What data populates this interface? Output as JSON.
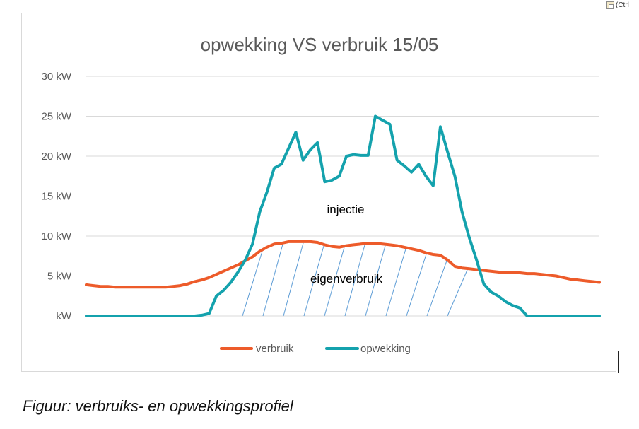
{
  "toolbar": {
    "paste_options_label": "(Ctrl"
  },
  "caption": "Figuur: verbruiks- en opwekkingsprofiel",
  "colors": {
    "verbruik": "#ED5B2A",
    "opwekking": "#14A2AD",
    "hatch": "#5B9BD5",
    "grid": "#D9D9D9",
    "text": "#595959"
  },
  "chart_data": {
    "type": "line",
    "title": "opwekking VS verbruik 15/05",
    "xlabel": "",
    "ylabel": "",
    "ylim": [
      0,
      30
    ],
    "ytick_labels": [
      "kW",
      "5 kW",
      "10 kW",
      "15 kW",
      "20 kW",
      "25 kW",
      "30 kW"
    ],
    "ytick_values": [
      0,
      5,
      10,
      15,
      20,
      25,
      30
    ],
    "grid": true,
    "legend": "bottom",
    "series": [
      {
        "name": "verbruik",
        "values": [
          3.9,
          3.8,
          3.7,
          3.7,
          3.6,
          3.6,
          3.6,
          3.6,
          3.6,
          3.6,
          3.6,
          3.6,
          3.7,
          3.8,
          4.0,
          4.3,
          4.5,
          4.8,
          5.2,
          5.6,
          6.0,
          6.4,
          6.9,
          7.4,
          8.1,
          8.6,
          9.0,
          9.1,
          9.3,
          9.3,
          9.3,
          9.3,
          9.2,
          8.9,
          8.7,
          8.6,
          8.8,
          8.9,
          9.0,
          9.1,
          9.1,
          9.0,
          8.9,
          8.8,
          8.6,
          8.4,
          8.2,
          7.9,
          7.7,
          7.6,
          7.0,
          6.2,
          6.0,
          5.9,
          5.8,
          5.7,
          5.6,
          5.5,
          5.4,
          5.4,
          5.4,
          5.3,
          5.3,
          5.2,
          5.1,
          5.0,
          4.8,
          4.6,
          4.5,
          4.4,
          4.3,
          4.2
        ]
      },
      {
        "name": "opwekking",
        "values": [
          0,
          0,
          0,
          0,
          0,
          0,
          0,
          0,
          0,
          0,
          0,
          0,
          0,
          0,
          0,
          0,
          0.1,
          0.3,
          2.5,
          3.2,
          4.2,
          5.5,
          7.0,
          9.0,
          13.0,
          15.5,
          18.5,
          19.0,
          21.0,
          23.0,
          19.5,
          20.8,
          21.7,
          16.8,
          17.0,
          17.5,
          20.0,
          20.2,
          20.1,
          20.1,
          25.0,
          24.5,
          24.0,
          19.5,
          18.8,
          18.0,
          19.0,
          17.5,
          16.3,
          23.7,
          20.5,
          17.5,
          13.0,
          9.8,
          7.0,
          4.0,
          3.0,
          2.5,
          1.8,
          1.3,
          1.0,
          0,
          0,
          0,
          0,
          0,
          0,
          0,
          0,
          0,
          0,
          0
        ]
      }
    ],
    "annotations": [
      "injectie",
      "eigenverbruik"
    ]
  }
}
